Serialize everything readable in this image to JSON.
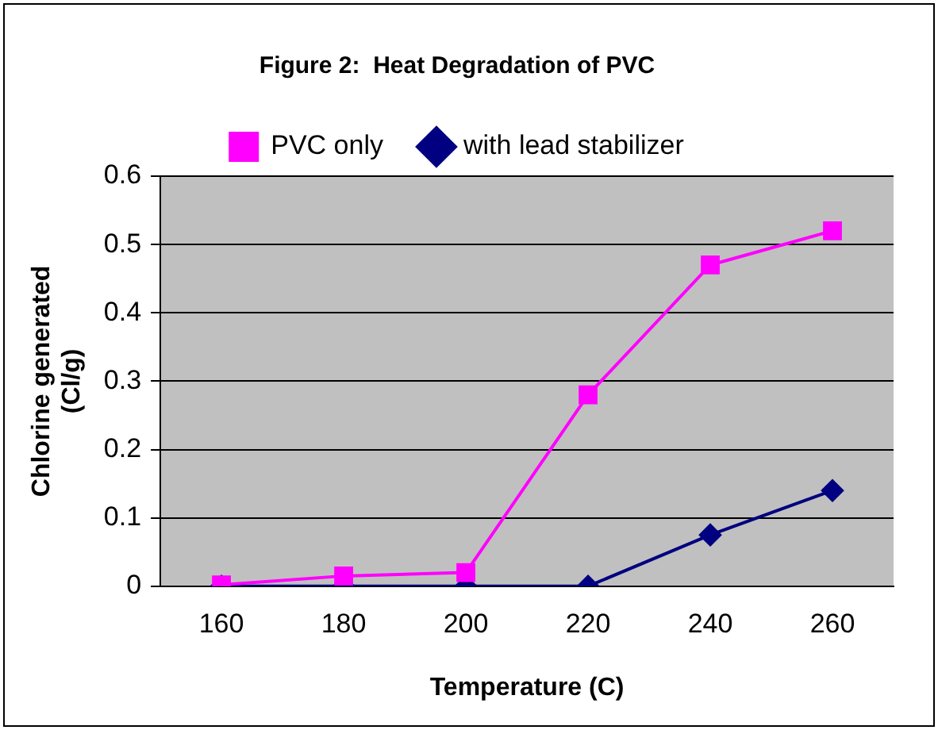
{
  "chart_data": {
    "type": "line",
    "title": "Figure 2:  Heat Degradation of PVC",
    "xlabel": "Temperature (C)",
    "ylabel": "Chlorine generated (Cl/g)",
    "categories": [
      "160",
      "180",
      "200",
      "220",
      "240",
      "260"
    ],
    "series": [
      {
        "name": "PVC only",
        "color": "#ff00ff",
        "marker": "square",
        "values": [
          0.002,
          0.015,
          0.02,
          0.28,
          0.47,
          0.52
        ]
      },
      {
        "name": "with lead stabilizer",
        "color": "#000080",
        "marker": "diamond",
        "values": [
          0,
          0,
          0,
          0,
          0.075,
          0.14
        ]
      }
    ],
    "ylim": [
      0,
      0.6
    ],
    "yticks": [
      0,
      0.1,
      0.2,
      0.3,
      0.4,
      0.5,
      0.6
    ],
    "grid": "y",
    "legend": "top"
  }
}
